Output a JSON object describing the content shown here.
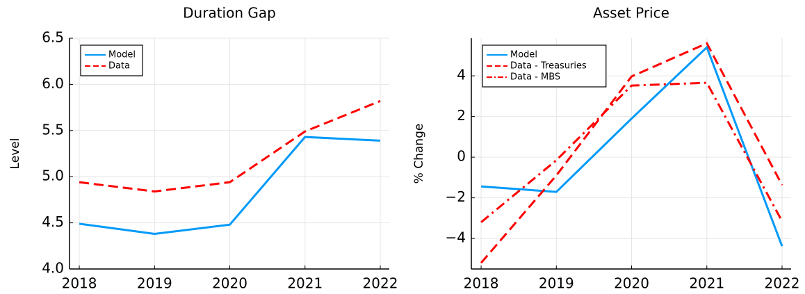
{
  "chart_data": [
    {
      "type": "line",
      "title": "Duration Gap",
      "ylabel": "Level",
      "x": [
        2018,
        2019,
        2020,
        2021,
        2022
      ],
      "series": [
        {
          "name": "Model",
          "color": "#009af9",
          "line_style": "solid",
          "values": [
            4.49,
            4.38,
            4.48,
            5.43,
            5.39
          ]
        },
        {
          "name": "Data",
          "color": "#ff0000",
          "line_style": "dash",
          "values": [
            4.94,
            4.84,
            4.94,
            5.49,
            5.82
          ]
        }
      ],
      "xlim": [
        2017.87,
        2022.12
      ],
      "xticks": [
        2018,
        2019,
        2020,
        2021,
        2022
      ],
      "ylim": [
        4.0,
        6.5
      ],
      "yticks": [
        {
          "value": 4,
          "label": "4.0"
        },
        4.5,
        {
          "value": 5,
          "label": "5.0"
        },
        5.5,
        {
          "value": 6,
          "label": "6.0"
        },
        6.5
      ],
      "grid": true,
      "legend": "top-left"
    },
    {
      "type": "line",
      "title": "Asset Price",
      "ylabel": "% Change",
      "x": [
        2018,
        2019,
        2020,
        2021,
        2022
      ],
      "series": [
        {
          "name": "Model",
          "color": "#009af9",
          "line_style": "solid",
          "values": [
            -1.44,
            -1.71,
            1.9,
            5.4,
            -4.38
          ]
        },
        {
          "name": "Data - Treasuries",
          "color": "#ff0000",
          "line_style": "dash",
          "values": [
            -5.2,
            -0.9,
            3.97,
            5.6,
            -1.37
          ]
        },
        {
          "name": "Data - MBS",
          "color": "#ff0000",
          "line_style": "dashdot",
          "values": [
            -3.2,
            -0.15,
            3.52,
            3.66,
            -3.15
          ]
        }
      ],
      "xlim": [
        2017.87,
        2022.12
      ],
      "xticks": [
        2018,
        2019,
        2020,
        2021,
        2022
      ],
      "ylim": [
        -5.5,
        5.85
      ],
      "yticks": [
        {
          "value": -4,
          "label": "−4"
        },
        {
          "value": -2,
          "label": "−2"
        },
        0,
        2,
        4
      ],
      "grid": true,
      "legend": "top-left"
    }
  ]
}
